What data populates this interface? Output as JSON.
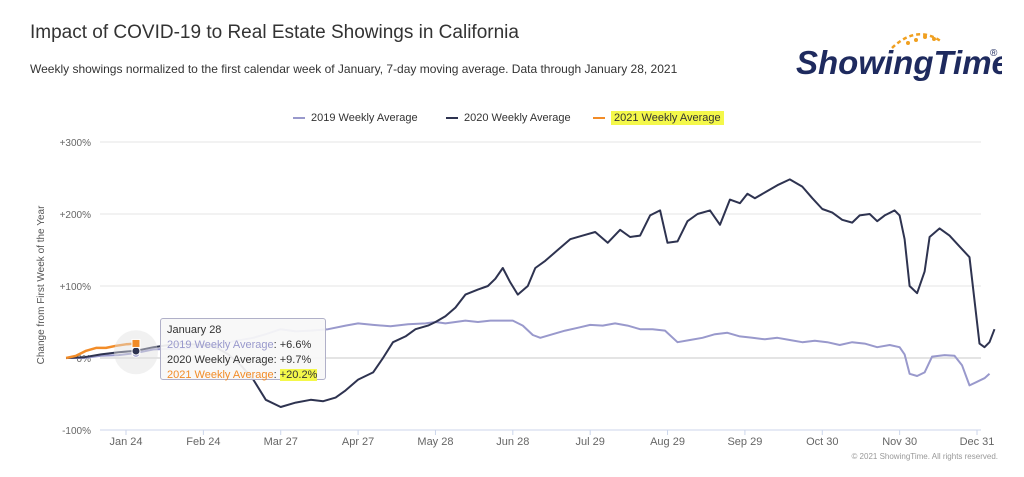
{
  "header": {
    "title": "Impact of COVID-19 to Real Estate Showings in California",
    "subtitle": "Weekly showings normalized to the first calendar week of January, 7-day moving average. Data through January 28, 2021"
  },
  "logo": {
    "text": "ShowingTime",
    "registered": "®",
    "icon": "sunrise-arc-icon",
    "color": "#1e2a5e",
    "accent": "#f0a020"
  },
  "legend": {
    "items": [
      {
        "label": "2019 Weekly Average",
        "color": "#9999cc"
      },
      {
        "label": "2020 Weekly Average",
        "color": "#2e3350"
      },
      {
        "label": "2021 Weekly Average",
        "color": "#f28c28"
      }
    ]
  },
  "tooltip": {
    "date": "January 28",
    "rows": [
      {
        "label": "2019 Weekly Average",
        "value": "+6.6%",
        "color": "#9999cc"
      },
      {
        "label": "2020 Weekly Average",
        "value": "+9.7%",
        "color": "#333333"
      },
      {
        "label": "2021 Weekly Average",
        "value": "+20.2%",
        "color": "#f28c28"
      }
    ]
  },
  "footer": {
    "copyright": "© 2021 ShowingTime. All rights reserved."
  },
  "chart_data": {
    "type": "line",
    "title": "Impact of COVID-19 to Real Estate Showings in California",
    "xlabel": "",
    "ylabel": "Change from First Week of the Year",
    "ylim": [
      -100,
      300
    ],
    "xlim": [
      0,
      365
    ],
    "grid": "horizontal",
    "legend_position": "top-center",
    "y_ticks": [
      {
        "value": -100,
        "label": "-100%"
      },
      {
        "value": 0,
        "label": "0%"
      },
      {
        "value": 100,
        "label": "+100%"
      },
      {
        "value": 200,
        "label": "+200%"
      },
      {
        "value": 300,
        "label": "+300%"
      }
    ],
    "x_ticks": [
      {
        "day": 24,
        "label": "Jan 24"
      },
      {
        "day": 55,
        "label": "Feb 24"
      },
      {
        "day": 86,
        "label": "Mar 27"
      },
      {
        "day": 117,
        "label": "Apr 27"
      },
      {
        "day": 148,
        "label": "May 28"
      },
      {
        "day": 179,
        "label": "Jun 28"
      },
      {
        "day": 210,
        "label": "Jul 29"
      },
      {
        "day": 241,
        "label": "Aug 29"
      },
      {
        "day": 272,
        "label": "Sep 29"
      },
      {
        "day": 303,
        "label": "Oct 30"
      },
      {
        "day": 334,
        "label": "Nov 30"
      },
      {
        "day": 365,
        "label": "Dec 31"
      }
    ],
    "series": [
      {
        "name": "2019 Weekly Average",
        "color": "#9999cc",
        "points": [
          [
            0,
            0
          ],
          [
            7,
            0
          ],
          [
            14,
            3
          ],
          [
            21,
            4
          ],
          [
            28,
            7
          ],
          [
            35,
            12
          ],
          [
            45,
            13
          ],
          [
            55,
            16
          ],
          [
            65,
            22
          ],
          [
            75,
            28
          ],
          [
            80,
            33
          ],
          [
            86,
            40
          ],
          [
            92,
            37
          ],
          [
            98,
            38
          ],
          [
            105,
            40
          ],
          [
            112,
            45
          ],
          [
            117,
            48
          ],
          [
            123,
            46
          ],
          [
            130,
            44
          ],
          [
            137,
            47
          ],
          [
            144,
            48
          ],
          [
            148,
            50
          ],
          [
            152,
            48
          ],
          [
            160,
            52
          ],
          [
            165,
            50
          ],
          [
            170,
            52
          ],
          [
            175,
            52
          ],
          [
            179,
            52
          ],
          [
            183,
            45
          ],
          [
            187,
            32
          ],
          [
            190,
            28
          ],
          [
            195,
            33
          ],
          [
            200,
            38
          ],
          [
            205,
            42
          ],
          [
            210,
            46
          ],
          [
            215,
            45
          ],
          [
            220,
            48
          ],
          [
            225,
            45
          ],
          [
            230,
            40
          ],
          [
            235,
            40
          ],
          [
            240,
            38
          ],
          [
            245,
            22
          ],
          [
            250,
            25
          ],
          [
            255,
            28
          ],
          [
            260,
            33
          ],
          [
            265,
            35
          ],
          [
            270,
            30
          ],
          [
            275,
            28
          ],
          [
            280,
            26
          ],
          [
            285,
            28
          ],
          [
            290,
            25
          ],
          [
            295,
            22
          ],
          [
            300,
            24
          ],
          [
            305,
            22
          ],
          [
            310,
            18
          ],
          [
            315,
            22
          ],
          [
            320,
            20
          ],
          [
            325,
            15
          ],
          [
            330,
            18
          ],
          [
            334,
            15
          ],
          [
            336,
            5
          ],
          [
            338,
            -22
          ],
          [
            341,
            -25
          ],
          [
            344,
            -20
          ],
          [
            347,
            2
          ],
          [
            352,
            4
          ],
          [
            356,
            3
          ],
          [
            359,
            -10
          ],
          [
            362,
            -38
          ],
          [
            365,
            -33
          ],
          [
            368,
            -28
          ],
          [
            370,
            -22
          ]
        ]
      },
      {
        "name": "2020 Weekly Average",
        "color": "#2e3350",
        "points": [
          [
            0,
            0
          ],
          [
            7,
            1
          ],
          [
            14,
            5
          ],
          [
            21,
            8
          ],
          [
            28,
            10
          ],
          [
            35,
            15
          ],
          [
            45,
            20
          ],
          [
            55,
            18
          ],
          [
            60,
            15
          ],
          [
            65,
            5
          ],
          [
            70,
            -10
          ],
          [
            75,
            -30
          ],
          [
            80,
            -58
          ],
          [
            86,
            -68
          ],
          [
            92,
            -62
          ],
          [
            98,
            -58
          ],
          [
            103,
            -60
          ],
          [
            108,
            -55
          ],
          [
            112,
            -45
          ],
          [
            117,
            -30
          ],
          [
            123,
            -20
          ],
          [
            127,
            0
          ],
          [
            131,
            22
          ],
          [
            136,
            30
          ],
          [
            140,
            40
          ],
          [
            145,
            45
          ],
          [
            148,
            50
          ],
          [
            152,
            58
          ],
          [
            156,
            70
          ],
          [
            160,
            88
          ],
          [
            165,
            95
          ],
          [
            169,
            100
          ],
          [
            172,
            110
          ],
          [
            175,
            125
          ],
          [
            178,
            105
          ],
          [
            181,
            88
          ],
          [
            185,
            100
          ],
          [
            188,
            125
          ],
          [
            192,
            135
          ],
          [
            197,
            150
          ],
          [
            202,
            165
          ],
          [
            207,
            170
          ],
          [
            212,
            175
          ],
          [
            217,
            160
          ],
          [
            222,
            178
          ],
          [
            226,
            168
          ],
          [
            230,
            170
          ],
          [
            234,
            198
          ],
          [
            238,
            205
          ],
          [
            241,
            160
          ],
          [
            245,
            162
          ],
          [
            249,
            190
          ],
          [
            253,
            200
          ],
          [
            258,
            205
          ],
          [
            262,
            185
          ],
          [
            266,
            220
          ],
          [
            270,
            215
          ],
          [
            273,
            228
          ],
          [
            276,
            222
          ],
          [
            281,
            232
          ],
          [
            285,
            240
          ],
          [
            290,
            248
          ],
          [
            295,
            238
          ],
          [
            299,
            222
          ],
          [
            303,
            207
          ],
          [
            307,
            202
          ],
          [
            311,
            192
          ],
          [
            315,
            188
          ],
          [
            318,
            198
          ],
          [
            322,
            200
          ],
          [
            325,
            190
          ],
          [
            328,
            198
          ],
          [
            332,
            205
          ],
          [
            334,
            198
          ],
          [
            336,
            165
          ],
          [
            338,
            100
          ],
          [
            341,
            90
          ],
          [
            344,
            120
          ],
          [
            346,
            168
          ],
          [
            350,
            180
          ],
          [
            354,
            170
          ],
          [
            358,
            155
          ],
          [
            362,
            140
          ],
          [
            364,
            80
          ],
          [
            366,
            20
          ],
          [
            368,
            15
          ],
          [
            370,
            22
          ],
          [
            372,
            40
          ]
        ]
      },
      {
        "name": "2021 Weekly Average",
        "color": "#f28c28",
        "points": [
          [
            0,
            0
          ],
          [
            4,
            3
          ],
          [
            8,
            10
          ],
          [
            12,
            14
          ],
          [
            16,
            14
          ],
          [
            20,
            17
          ],
          [
            24,
            19
          ],
          [
            28,
            20.2
          ]
        ]
      }
    ]
  }
}
